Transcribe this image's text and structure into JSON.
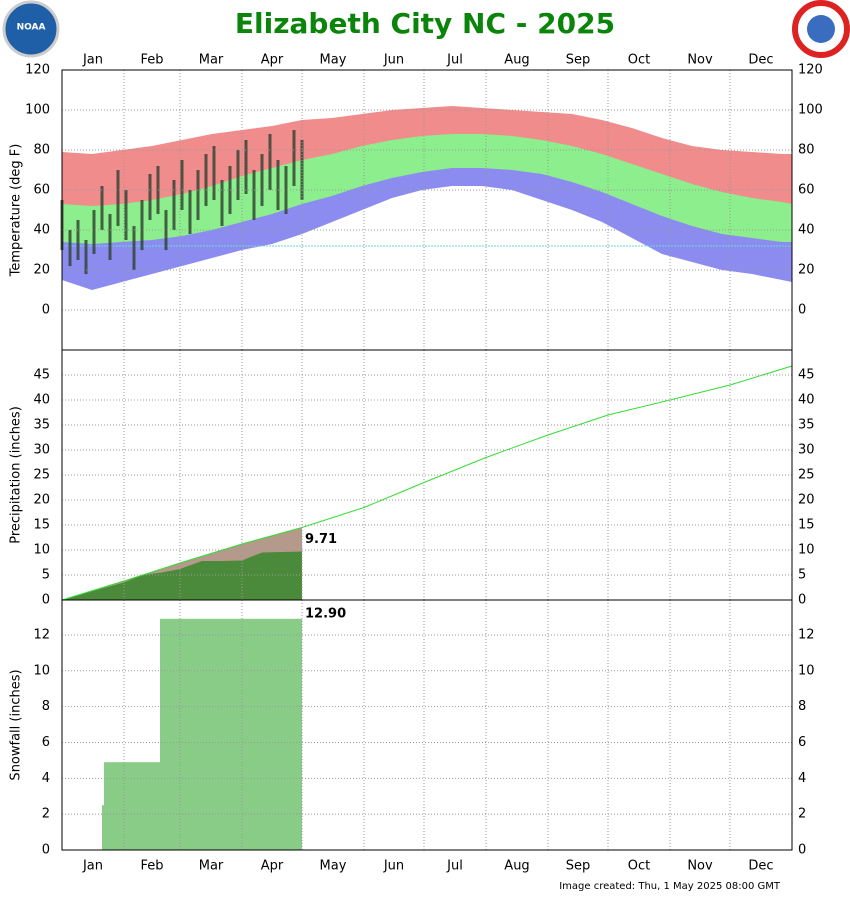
{
  "title": "Elizabeth City NC - 2025",
  "logo_left": "NOAA",
  "footer": "Image created: Thu, 1 May 2025 08:00 GMT",
  "chart_data": [
    {
      "type": "area",
      "ylabel": "Temperature (deg F)",
      "categories": [
        "Jan",
        "Feb",
        "Mar",
        "Apr",
        "May",
        "Jun",
        "Jul",
        "Aug",
        "Sep",
        "Oct",
        "Nov",
        "Dec"
      ],
      "xlim": [
        0,
        365
      ],
      "ylim": [
        -20,
        120
      ],
      "yticks": [
        0,
        20,
        40,
        60,
        80,
        100,
        120
      ],
      "grid": true,
      "reference_line": {
        "value": 32,
        "color": "#66dddd"
      },
      "x": [
        0,
        15,
        30,
        45,
        60,
        75,
        90,
        105,
        120,
        135,
        150,
        165,
        180,
        195,
        210,
        225,
        240,
        255,
        270,
        285,
        300,
        315,
        330,
        345,
        360,
        365
      ],
      "series": [
        {
          "color": "#f08c8c",
          "values": [
            79,
            78,
            80,
            82,
            85,
            88,
            90,
            92,
            95,
            96,
            98,
            100,
            101,
            102,
            101,
            100,
            99,
            98,
            95,
            91,
            86,
            82,
            80,
            79,
            78,
            78
          ]
        },
        {
          "color": "#8cee8c",
          "values": [
            53,
            52,
            53,
            55,
            58,
            62,
            67,
            71,
            75,
            78,
            82,
            85,
            87,
            88,
            88,
            87,
            85,
            82,
            78,
            73,
            68,
            63,
            59,
            56,
            54,
            53
          ]
        },
        {
          "color": "#8c8cf0",
          "values": [
            34,
            33,
            34,
            35,
            37,
            40,
            44,
            48,
            53,
            57,
            62,
            66,
            69,
            71,
            71,
            70,
            68,
            64,
            59,
            53,
            47,
            42,
            38,
            36,
            34,
            34
          ]
        },
        {
          "color": "#ffffff",
          "values": [
            15,
            10,
            14,
            18,
            22,
            26,
            30,
            33,
            38,
            44,
            50,
            56,
            60,
            62,
            62,
            60,
            55,
            50,
            44,
            36,
            28,
            24,
            20,
            18,
            15,
            14
          ]
        }
      ],
      "observed": {
        "color": "#2e3e2e",
        "x": [
          0,
          4,
          8,
          12,
          16,
          20,
          24,
          28,
          32,
          36,
          40,
          44,
          48,
          52,
          56,
          60,
          64,
          68,
          72,
          76,
          80,
          84,
          88,
          92,
          96,
          100,
          104,
          108,
          112,
          116,
          120
        ],
        "high": [
          55,
          40,
          45,
          35,
          50,
          62,
          48,
          70,
          60,
          42,
          55,
          68,
          72,
          50,
          65,
          75,
          60,
          70,
          78,
          82,
          65,
          72,
          80,
          85,
          70,
          78,
          88,
          75,
          72,
          90,
          85
        ],
        "low": [
          30,
          22,
          25,
          18,
          28,
          40,
          25,
          42,
          35,
          20,
          30,
          45,
          48,
          30,
          40,
          50,
          38,
          45,
          52,
          55,
          42,
          48,
          55,
          58,
          45,
          52,
          60,
          50,
          48,
          62,
          55
        ]
      }
    },
    {
      "type": "line",
      "ylabel": "Precipitation (inches)",
      "xlim": [
        0,
        365
      ],
      "ylim": [
        0,
        50
      ],
      "yticks": [
        0,
        5,
        10,
        15,
        20,
        25,
        30,
        35,
        40,
        45
      ],
      "grid": true,
      "series": [
        {
          "color": "#33dd33",
          "fill": "#b59a8c",
          "x": [
            0,
            31,
            59,
            90,
            120,
            151,
            181,
            212,
            243,
            273,
            304,
            334,
            365
          ],
          "values": [
            0,
            3.8,
            7.4,
            11.2,
            14.5,
            18.5,
            23.5,
            28.5,
            33,
            37,
            40,
            43,
            46.8
          ]
        },
        {
          "color": "#4a8a3a",
          "x": [
            0,
            10,
            20,
            31,
            40,
            50,
            59,
            70,
            80,
            90,
            100,
            110,
            120
          ],
          "values": [
            0,
            1.2,
            2.3,
            3.5,
            5.0,
            5.5,
            6.2,
            7.8,
            7.8,
            7.9,
            9.5,
            9.6,
            9.71
          ]
        }
      ]
    },
    {
      "type": "bar",
      "ylabel": "Snowfall (inches)",
      "xlim": [
        0,
        365
      ],
      "ylim": [
        0,
        13.95
      ],
      "yticks": [
        0,
        2,
        4,
        6,
        8,
        10,
        12
      ],
      "grid": true,
      "series": [
        {
          "color": "#88cc88",
          "x": [
            20,
            21,
            49,
            119
          ],
          "values": [
            2.5,
            4.9,
            12.9,
            12.9
          ],
          "value_labels": [
            null,
            null,
            null,
            "12.90"
          ]
        }
      ]
    }
  ]
}
